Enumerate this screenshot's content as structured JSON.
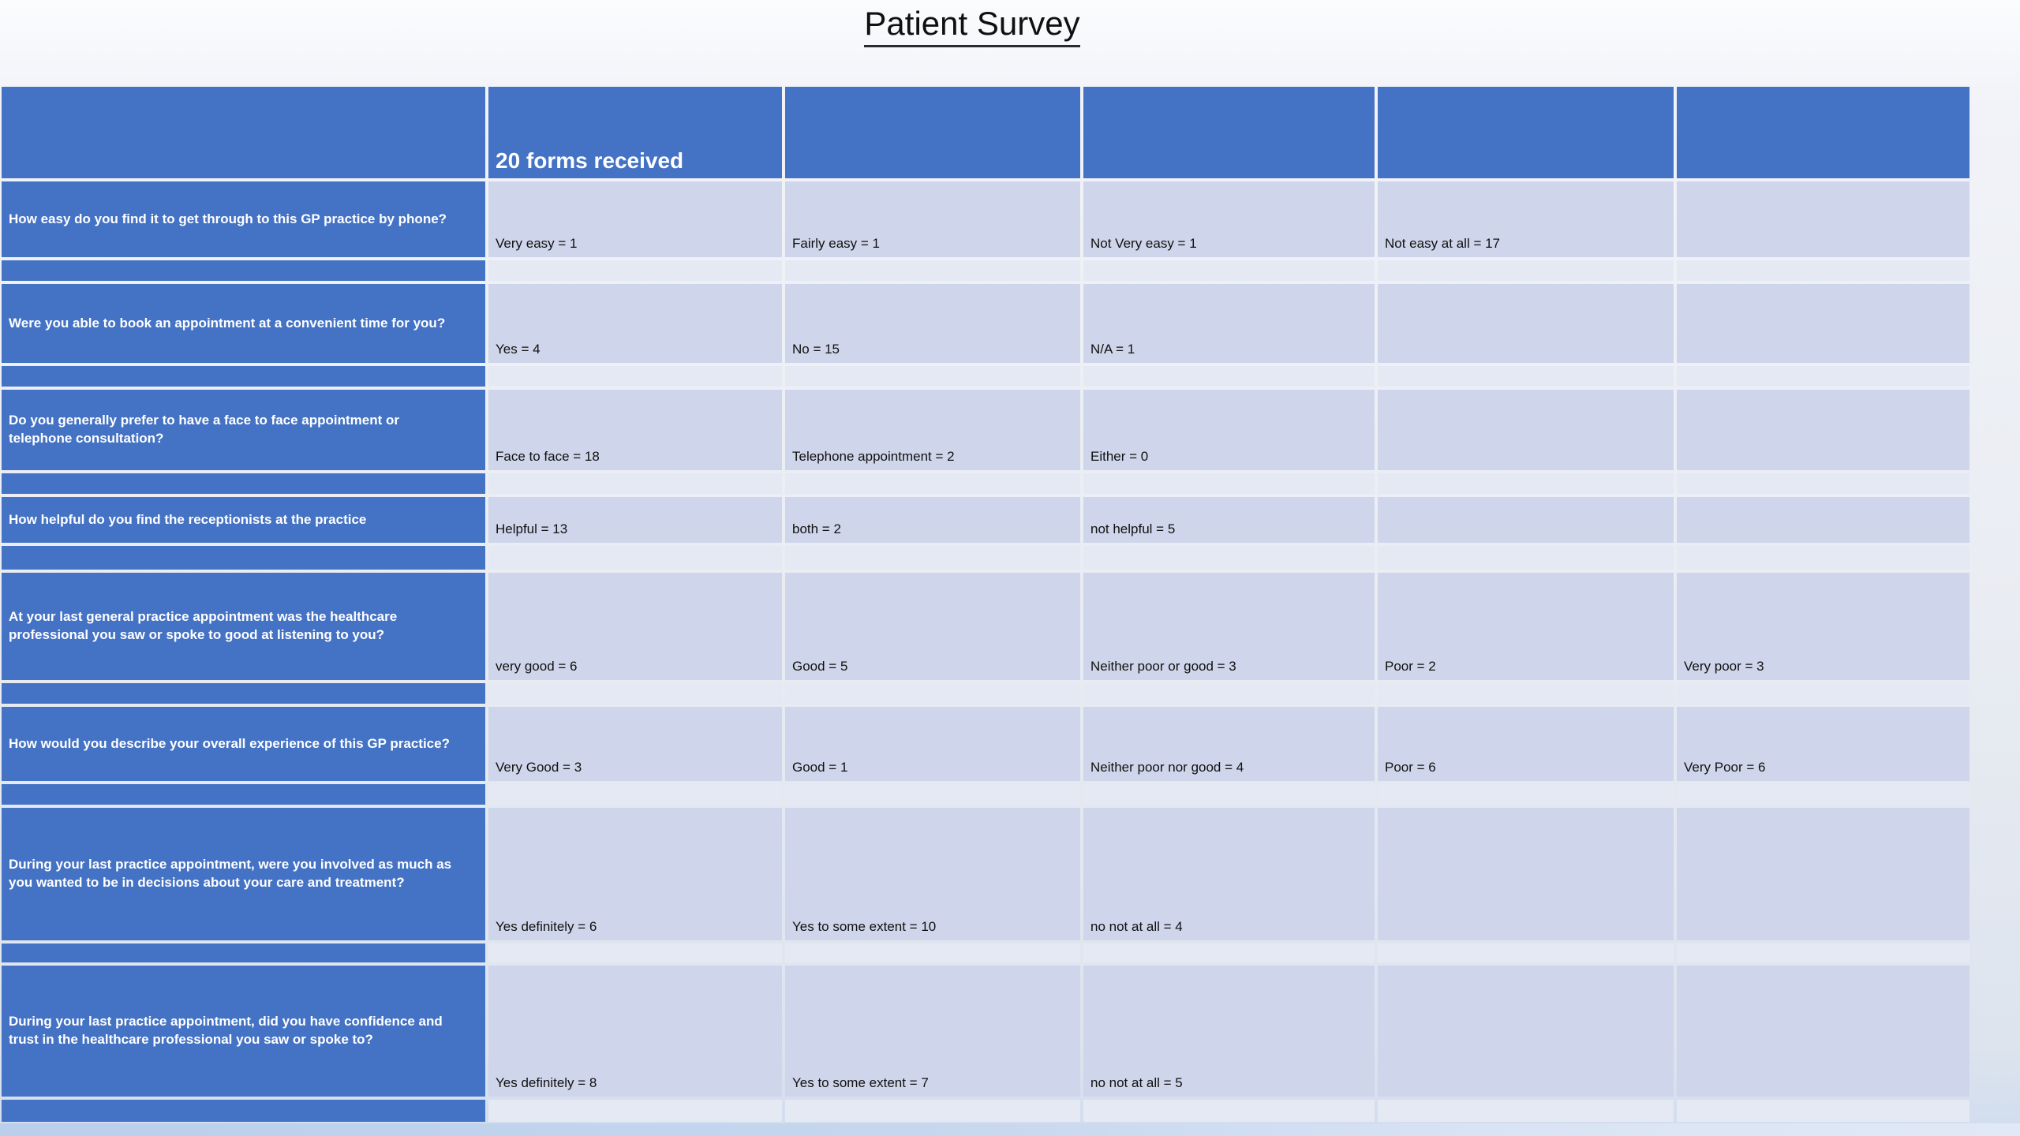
{
  "title": "Patient Survey",
  "table": {
    "forms_received": "20 forms received",
    "rows": [
      {
        "question": "How easy do you find it to get through to this GP practice by phone?",
        "answers": [
          "Very easy = 1",
          "Fairly easy = 1",
          "Not Very easy = 1",
          "Not easy at all = 17",
          ""
        ]
      },
      {
        "question": "Were you able to book an appointment at a convenient time for you?",
        "answers": [
          "Yes = 4",
          "No = 15",
          "N/A = 1",
          "",
          ""
        ]
      },
      {
        "question": "Do you generally prefer to have a face to face appointment or telephone consultation?",
        "answers": [
          "Face to face = 18",
          "Telephone appointment = 2",
          "Either = 0",
          "",
          ""
        ]
      },
      {
        "question": "How helpful do you find the receptionists at the practice",
        "answers": [
          "Helpful = 13",
          "both = 2",
          "not helpful  = 5",
          "",
          ""
        ]
      },
      {
        "question": "At your last general practice appointment was the healthcare professional you saw or spoke to good at listening to you?",
        "answers": [
          "very good = 6",
          "Good = 5",
          "Neither poor or good  = 3",
          "Poor = 2",
          "Very poor = 3"
        ]
      },
      {
        "question": "How would you describe your overall experience of this GP practice?",
        "answers": [
          "Very Good = 3",
          "Good = 1",
          "Neither poor nor good = 4",
          "Poor = 6",
          "Very Poor = 6"
        ]
      },
      {
        "question": "During your last practice appointment, were you involved as much as you wanted to be in decisions about your care and treatment?",
        "answers": [
          "Yes definitely = 6",
          "Yes to some extent = 10",
          "no not at all = 4",
          "",
          ""
        ]
      },
      {
        "question": "During your last practice appointment, did you have confidence and trust in the healthcare professional you saw or spoke to?",
        "answers": [
          "Yes definitely = 8",
          "Yes to some extent = 7",
          "no not at all = 5",
          "",
          ""
        ]
      }
    ]
  },
  "colors": {
    "header_blue": "#4472C4",
    "answer_cell": "#CFD5EA",
    "separator_cell": "#E5E9F4",
    "border_white": "#FFFFFF",
    "bottom_band": "#C6D6EE"
  }
}
